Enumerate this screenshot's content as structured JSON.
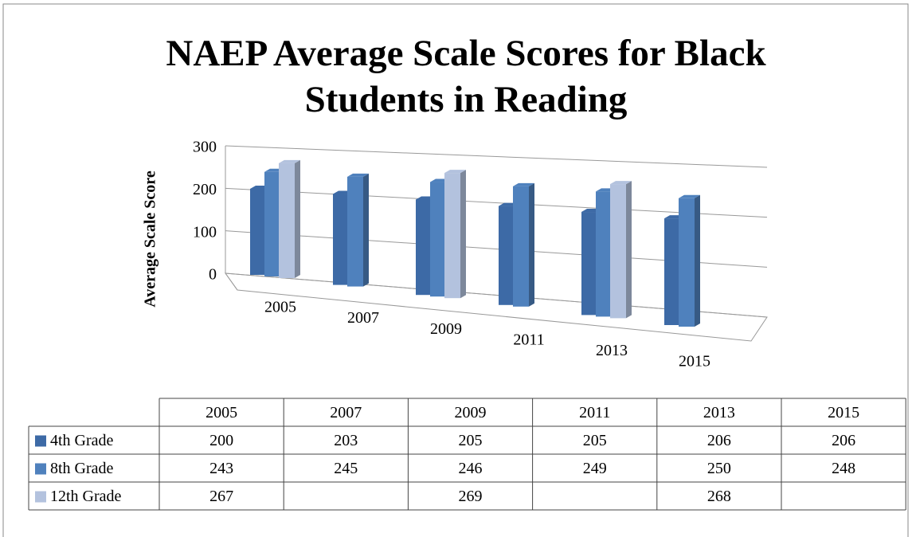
{
  "chart_data": {
    "type": "bar3d",
    "title": "NAEP Average Scale Scores for Black Students in Reading",
    "y_label": "Average Scale Score",
    "categories": [
      "2005",
      "2007",
      "2009",
      "2011",
      "2013",
      "2015"
    ],
    "series": [
      {
        "name": "4th Grade",
        "color": "#3d6aa6",
        "values": [
          200,
          203,
          205,
          205,
          206,
          206
        ]
      },
      {
        "name": "8th Grade",
        "color": "#4f81bd",
        "values": [
          243,
          245,
          246,
          249,
          250,
          248
        ]
      },
      {
        "name": "12th Grade",
        "color": "#b3c2de",
        "values": [
          267,
          null,
          269,
          null,
          268,
          null
        ]
      }
    ],
    "ylim": [
      0,
      300
    ],
    "yticks": [
      0,
      100,
      200,
      300
    ],
    "grid": true,
    "data_table": true
  }
}
